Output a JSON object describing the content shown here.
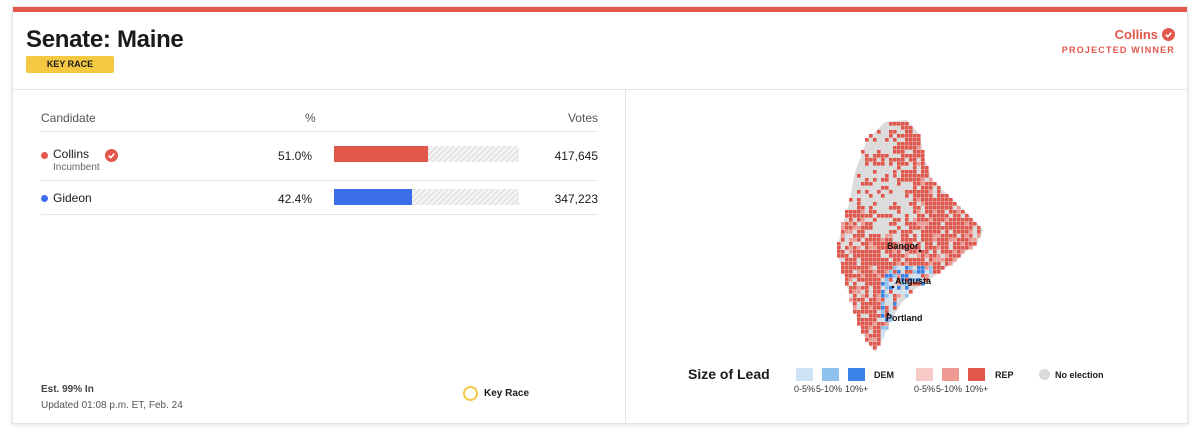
{
  "race": {
    "title": "Senate: Maine",
    "badge": "KEY RACE",
    "winner_name": "Collins",
    "winner_label": "PROJECTED WINNER"
  },
  "table": {
    "col_candidate": "Candidate",
    "col_pct": "%",
    "col_votes": "Votes",
    "rows": [
      {
        "name": "Collins",
        "sub": "Incumbent",
        "pct": "51.0%",
        "pct_value": 51.0,
        "votes": "417,645",
        "color": "#e2574c",
        "winner": true
      },
      {
        "name": "Gideon",
        "sub": "",
        "pct": "42.4%",
        "pct_value": 42.4,
        "votes": "347,223",
        "color": "#3b6ee8",
        "winner": false
      }
    ]
  },
  "footer": {
    "estimate": "Est. 99% In",
    "updated": "Updated 01:08 p.m. ET, Feb. 24",
    "key_race_legend": "Key Race"
  },
  "map": {
    "cities": [
      "Bangor",
      "Augusta",
      "Portland"
    ],
    "legend": {
      "title": "Size of Lead",
      "dem_label": "DEM",
      "rep_label": "REP",
      "no_election": "No election",
      "bins": [
        "0-5%",
        "5-10%",
        "10%+"
      ],
      "dem_colors": [
        "#cfe3f7",
        "#8ec1ee",
        "#3b82e8"
      ],
      "rep_colors": [
        "#f6cac6",
        "#ee9a93",
        "#e2574c"
      ]
    }
  },
  "colors": {
    "rep": "#e2574c",
    "dem": "#3b6ee8",
    "key_race": "#f5c842"
  }
}
